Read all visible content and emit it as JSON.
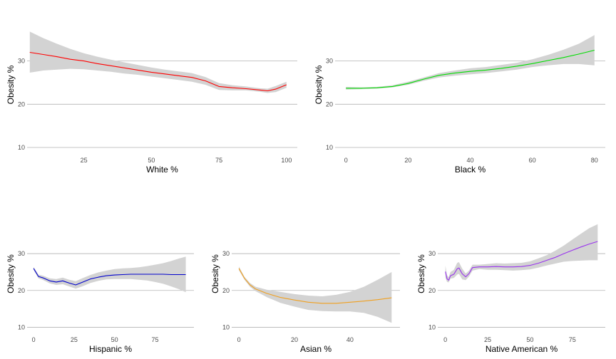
{
  "chart_data": [
    {
      "type": "line",
      "xlabel": "White %",
      "ylabel": "Obesity %",
      "xlim": [
        4,
        104
      ],
      "ylim": [
        9.5,
        39.5
      ],
      "xticks": [
        25,
        50,
        75,
        100
      ],
      "yticks": [
        10,
        20,
        30
      ],
      "grid": "horizontal major only",
      "line_color": "#ff0000",
      "band_color": "#d3d3d3",
      "series": [
        {
          "x": [
            5,
            10,
            15,
            20,
            25,
            30,
            35,
            40,
            45,
            50,
            55,
            60,
            65,
            70,
            75,
            80,
            85,
            90,
            93,
            96,
            100
          ],
          "values": [
            32.0,
            31.5,
            31.0,
            30.4,
            30.0,
            29.4,
            28.9,
            28.4,
            27.9,
            27.4,
            27.0,
            26.6,
            26.2,
            25.4,
            24.1,
            23.8,
            23.6,
            23.3,
            23.1,
            23.5,
            24.5
          ],
          "lower": [
            27.3,
            27.8,
            28.0,
            28.2,
            28.1,
            27.8,
            27.5,
            27.1,
            26.8,
            26.4,
            26.0,
            25.6,
            25.2,
            24.5,
            23.3,
            23.2,
            23.2,
            22.9,
            22.6,
            22.8,
            23.8
          ],
          "upper": [
            36.8,
            35.3,
            34.0,
            32.8,
            31.8,
            31.0,
            30.3,
            29.7,
            29.1,
            28.5,
            28.0,
            27.6,
            27.2,
            26.3,
            24.9,
            24.4,
            24.1,
            23.7,
            23.6,
            24.2,
            25.2
          ]
        }
      ]
    },
    {
      "type": "line",
      "xlabel": "Black %",
      "ylabel": "Obesity %",
      "xlim": [
        -3.5,
        83.5
      ],
      "ylim": [
        9.5,
        39.5
      ],
      "xticks": [
        0,
        20,
        40,
        60,
        80
      ],
      "yticks": [
        10,
        20,
        30
      ],
      "grid": "horizontal major only",
      "line_color": "#00dd00",
      "band_color": "#d3d3d3",
      "series": [
        {
          "x": [
            0,
            5,
            10,
            15,
            20,
            25,
            30,
            35,
            40,
            45,
            50,
            55,
            60,
            65,
            70,
            75,
            80
          ],
          "values": [
            23.7,
            23.7,
            23.8,
            24.1,
            24.8,
            25.8,
            26.7,
            27.2,
            27.6,
            27.9,
            28.3,
            28.8,
            29.4,
            30.1,
            30.8,
            31.6,
            32.5
          ],
          "lower": [
            23.4,
            23.5,
            23.6,
            23.9,
            24.5,
            25.4,
            26.2,
            26.6,
            26.9,
            27.2,
            27.6,
            28.0,
            28.6,
            29.0,
            29.3,
            29.3,
            29.0
          ],
          "upper": [
            24.0,
            23.9,
            24.0,
            24.4,
            25.2,
            26.2,
            27.2,
            27.8,
            28.3,
            28.6,
            29.1,
            29.6,
            30.4,
            31.4,
            32.6,
            34.0,
            36.0
          ]
        }
      ]
    },
    {
      "type": "line",
      "xlabel": "Hispanic %",
      "ylabel": "Obesity %",
      "xlim": [
        -4,
        99
      ],
      "ylim": [
        9.5,
        39.5
      ],
      "xticks": [
        0,
        25,
        50,
        75
      ],
      "yticks": [
        10,
        20,
        30
      ],
      "grid": "horizontal major only",
      "line_color": "#0000cc",
      "band_color": "#d3d3d3",
      "series": [
        {
          "x": [
            0,
            3,
            6,
            10,
            14,
            18,
            22,
            26,
            30,
            35,
            40,
            45,
            50,
            55,
            60,
            65,
            70,
            75,
            80,
            85,
            90,
            94
          ],
          "values": [
            26.0,
            23.8,
            23.4,
            22.6,
            22.3,
            22.6,
            22.0,
            21.5,
            22.2,
            23.1,
            23.6,
            24.0,
            24.2,
            24.3,
            24.4,
            24.4,
            24.4,
            24.4,
            24.4,
            24.3,
            24.3,
            24.3
          ],
          "lower": [
            25.6,
            23.3,
            22.8,
            21.9,
            21.5,
            21.7,
            21.1,
            20.5,
            21.1,
            22.0,
            22.6,
            23.0,
            23.1,
            23.1,
            23.1,
            22.9,
            22.7,
            22.3,
            21.8,
            21.1,
            20.3,
            19.5
          ],
          "upper": [
            26.4,
            24.3,
            24.0,
            23.3,
            23.1,
            23.5,
            22.9,
            22.5,
            23.3,
            24.2,
            24.9,
            25.4,
            25.8,
            26.0,
            26.1,
            26.3,
            26.6,
            27.0,
            27.4,
            28.0,
            28.7,
            29.2
          ]
        }
      ]
    },
    {
      "type": "line",
      "xlabel": "Asian %",
      "ylabel": "Obesity %",
      "xlim": [
        -2.6,
        58
      ],
      "ylim": [
        9.5,
        39.5
      ],
      "xticks": [
        0,
        20,
        40
      ],
      "yticks": [
        10,
        20,
        30
      ],
      "grid": "horizontal major only",
      "line_color": "#f0a020",
      "band_color": "#d3d3d3",
      "series": [
        {
          "x": [
            0,
            2,
            4,
            6,
            8,
            10,
            15,
            20,
            25,
            30,
            35,
            40,
            45,
            50,
            55
          ],
          "values": [
            26.0,
            23.3,
            21.5,
            20.4,
            19.8,
            19.2,
            18.1,
            17.4,
            16.8,
            16.5,
            16.5,
            16.8,
            17.1,
            17.5,
            18.0
          ],
          "lower": [
            25.5,
            22.9,
            21.0,
            19.8,
            19.0,
            18.2,
            16.6,
            15.6,
            14.7,
            14.4,
            14.3,
            14.3,
            13.9,
            12.8,
            11.2
          ],
          "upper": [
            26.5,
            23.7,
            22.0,
            21.0,
            20.6,
            20.2,
            19.6,
            19.0,
            18.6,
            18.4,
            18.8,
            19.6,
            21.0,
            22.9,
            25.0
          ]
        }
      ]
    },
    {
      "type": "line",
      "xlabel": "Native American %",
      "ylabel": "Obesity %",
      "xlim": [
        -4.5,
        94.5
      ],
      "ylim": [
        9.5,
        39.5
      ],
      "xticks": [
        0,
        25,
        50,
        75
      ],
      "yticks": [
        10,
        20,
        30
      ],
      "grid": "horizontal major only",
      "line_color": "#9933ee",
      "band_color": "#d3d3d3",
      "series": [
        {
          "x": [
            0,
            1,
            2,
            3,
            5,
            7,
            8,
            10,
            12,
            14,
            16,
            20,
            25,
            30,
            35,
            40,
            45,
            50,
            55,
            60,
            65,
            70,
            75,
            80,
            85,
            90
          ],
          "values": [
            25.1,
            23.1,
            22.8,
            24.0,
            24.4,
            25.9,
            26.1,
            24.5,
            23.7,
            24.6,
            26.2,
            26.4,
            26.4,
            26.5,
            26.4,
            26.4,
            26.5,
            26.8,
            27.4,
            28.2,
            29.0,
            30.0,
            30.9,
            31.8,
            32.6,
            33.3
          ],
          "lower": [
            23.5,
            22.3,
            22.2,
            23.2,
            23.4,
            24.3,
            24.5,
            23.0,
            22.8,
            23.8,
            25.4,
            25.8,
            25.6,
            25.6,
            25.5,
            25.4,
            25.5,
            25.7,
            26.2,
            26.8,
            27.3,
            27.8,
            28.0,
            28.1,
            28.2,
            28.2
          ],
          "upper": [
            26.7,
            24.1,
            23.6,
            25.0,
            25.6,
            27.5,
            27.7,
            25.9,
            24.6,
            25.4,
            27.0,
            27.0,
            27.2,
            27.4,
            27.3,
            27.4,
            27.5,
            27.9,
            28.7,
            29.6,
            30.8,
            32.2,
            33.8,
            35.4,
            36.9,
            38.0
          ]
        }
      ]
    }
  ]
}
